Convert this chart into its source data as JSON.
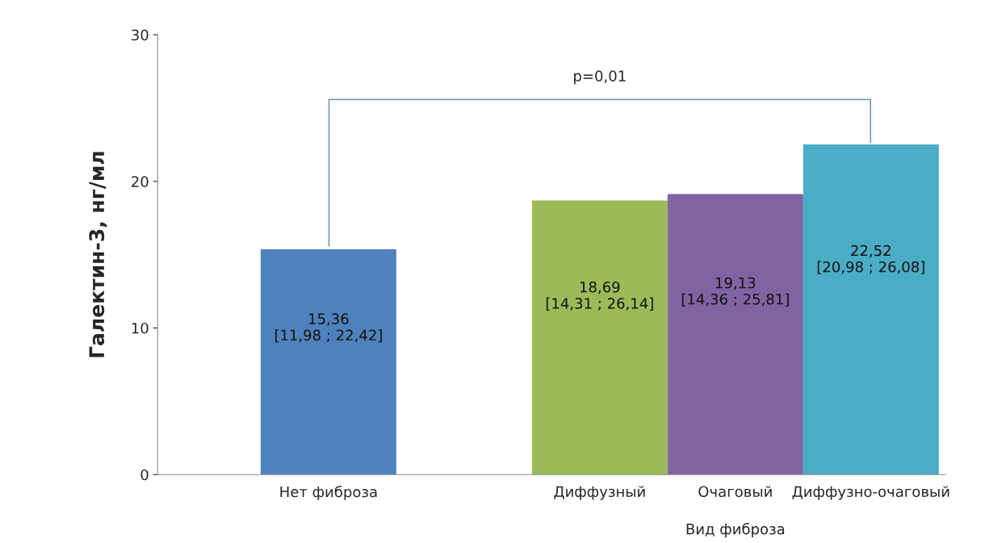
{
  "chart_data": {
    "type": "bar",
    "categories": [
      "Нет фиброза",
      null,
      "Диффузный",
      "Очаговый",
      "Диффузно-очаговый"
    ],
    "values": [
      15.36,
      null,
      18.69,
      19.13,
      22.52
    ],
    "colors": [
      "#4f81bd",
      "#ffffff",
      "#9bbb59",
      "#8064a2",
      "#4bacc6"
    ],
    "value_labels": [
      "15,36\n[11,98 ; 22,42]",
      null,
      "18,69\n[14,31 ; 26,14]",
      "19,13\n[14,36 ; 25,81]",
      "22,52\n[20,98 ; 26,08]"
    ],
    "xlabel": "Вид фиброза",
    "ylabel": "Галектин-3, нг/мл",
    "ylim": [
      0,
      30
    ],
    "yticks": [
      0,
      10,
      20,
      30
    ],
    "annotations": [
      "p=0,01"
    ],
    "grid": false,
    "legend": false
  }
}
